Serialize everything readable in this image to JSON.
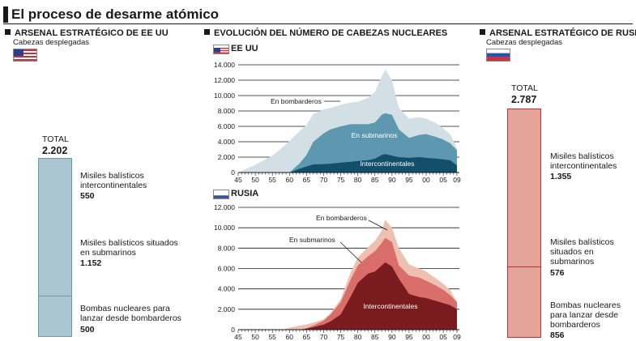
{
  "title": "El proceso de desarme atómico",
  "usa": {
    "heading": "ARSENAL ESTRATÉGICO DE EE UU",
    "subheading": "Cabezas desplegadas",
    "total_label": "TOTAL",
    "total_value": "2.202",
    "segments": [
      {
        "lines": [
          "Misiles balísticos",
          "intercontinentales"
        ],
        "value": "550"
      },
      {
        "lines": [
          "Misiles balísticos situados",
          "en submarinos"
        ],
        "value": "1.152"
      },
      {
        "lines": [
          "Bombas nucleares para",
          "lanzar desde bombarderos"
        ],
        "value": "500"
      }
    ]
  },
  "middle": {
    "heading": "EVOLUCIÓN DEL NÚMERO DE CABEZAS NUCLEARES"
  },
  "russia": {
    "heading": "ARSENAL ESTRATÉGICO DE RUSIA",
    "subheading": "Cabezas desplegadas",
    "total_label": "TOTAL",
    "total_value": "2.787",
    "segments": [
      {
        "lines": [
          "Misiles balísticos",
          "intercontinentales"
        ],
        "value": "1.355"
      },
      {
        "lines": [
          "Misiles balísticos",
          "situados en",
          "submarinos"
        ],
        "value": "576"
      },
      {
        "lines": [
          "Bombas nucleares",
          "para lanzar desde",
          "bombarderos"
        ],
        "value": "856"
      }
    ]
  },
  "colors": {
    "usa_bar": "#a9c6d1",
    "usa_bar_border": "#6e98a8",
    "rus_bar": "#e3a598",
    "rus_bar_border": "#b8303a",
    "usa_light": "#d2e0e5",
    "usa_mid": "#5d98b0",
    "usa_dark": "#134f6a",
    "rus_light": "#eec0b2",
    "rus_mid": "#d86d69",
    "rus_dark": "#7a1b1f"
  },
  "chart_data": [
    {
      "type": "area",
      "title": "EE UU",
      "x_tick_labels": [
        "45",
        "50",
        "55",
        "60",
        "65",
        "70",
        "75",
        "80",
        "85",
        "90",
        "95",
        "00",
        "05",
        "09"
      ],
      "y_tick_labels": [
        "0",
        "2.000",
        "4.000",
        "6.000",
        "8.000",
        "10.000",
        "12.000",
        "14.000"
      ],
      "ylim": [
        0,
        14000
      ],
      "x": [
        1945,
        1950,
        1955,
        1958,
        1960,
        1963,
        1965,
        1967,
        1970,
        1972,
        1975,
        1978,
        1980,
        1983,
        1985,
        1987,
        1988,
        1990,
        1992,
        1995,
        1998,
        2000,
        2003,
        2005,
        2007,
        2009
      ],
      "series": [
        {
          "name": "Intercontinentales",
          "values": [
            0,
            0,
            0,
            0,
            0,
            500,
            800,
            1050,
            1100,
            1150,
            1300,
            1400,
            1500,
            1600,
            1800,
            2300,
            2400,
            2200,
            2000,
            1900,
            2000,
            1900,
            1800,
            1700,
            1600,
            900
          ]
        },
        {
          "name": "En submarinos",
          "values": [
            0,
            0,
            0,
            0,
            0,
            1200,
            2300,
            4000,
            5100,
            5600,
            6000,
            6300,
            6300,
            6300,
            6500,
            7500,
            7700,
            7500,
            5600,
            4500,
            4900,
            5000,
            4600,
            4300,
            3800,
            2900
          ]
        },
        {
          "name": "En bombarderos",
          "values": [
            0,
            1000,
            2200,
            3300,
            4100,
            5400,
            6200,
            7600,
            8200,
            8400,
            8800,
            9100,
            9200,
            9700,
            10500,
            12500,
            13400,
            12000,
            8400,
            7000,
            7200,
            7000,
            6400,
            5700,
            5000,
            3200
          ]
        }
      ]
    },
    {
      "type": "area",
      "title": "RUSIA",
      "x_tick_labels": [
        "45",
        "50",
        "55",
        "60",
        "65",
        "70",
        "75",
        "80",
        "85",
        "90",
        "95",
        "00",
        "05",
        "09"
      ],
      "y_tick_labels": [
        "0",
        "2.000",
        "4.000",
        "6.000",
        "8.000",
        "10.000",
        "12.000"
      ],
      "ylim": [
        0,
        12000
      ],
      "x": [
        1945,
        1950,
        1955,
        1958,
        1960,
        1963,
        1965,
        1967,
        1970,
        1972,
        1975,
        1978,
        1980,
        1983,
        1985,
        1987,
        1988,
        1990,
        1992,
        1995,
        1998,
        2000,
        2003,
        2005,
        2007,
        2009
      ],
      "series": [
        {
          "name": "Intercontinentales",
          "values": [
            0,
            0,
            0,
            0,
            0,
            0,
            100,
            250,
            500,
            800,
            1500,
            3300,
            4600,
            5500,
            5700,
            6300,
            6600,
            6200,
            5000,
            3500,
            3200,
            3100,
            2800,
            2600,
            2400,
            2000
          ]
        },
        {
          "name": "En submarinos",
          "values": [
            0,
            0,
            0,
            0,
            0,
            0,
            150,
            400,
            900,
            1500,
            2700,
            5000,
            6300,
            7200,
            7700,
            8500,
            9000,
            8600,
            6300,
            5300,
            5100,
            4800,
            4300,
            3900,
            3400,
            2700
          ]
        },
        {
          "name": "En bombarderos",
          "values": [
            0,
            0,
            0,
            0,
            200,
            400,
            500,
            700,
            1000,
            1600,
            3000,
            5700,
            7100,
            8100,
            8700,
            9700,
            10800,
            10000,
            8000,
            6400,
            6000,
            5700,
            5000,
            4500,
            3900,
            2700
          ]
        }
      ]
    }
  ]
}
